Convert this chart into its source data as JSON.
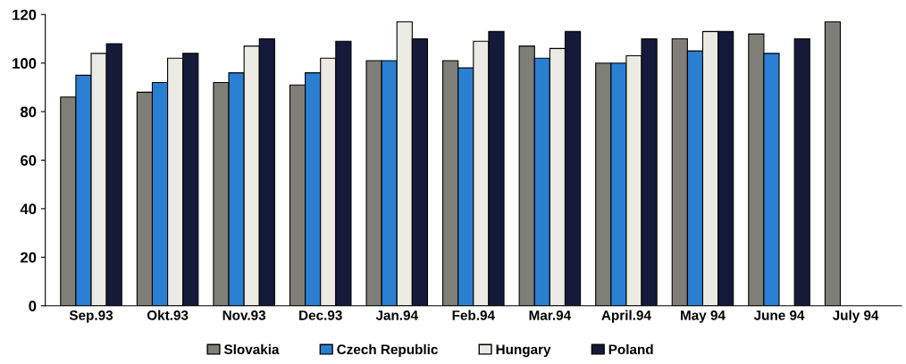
{
  "chart_data": {
    "type": "bar",
    "categories": [
      "Sep.93",
      "Okt.93",
      "Nov.93",
      "Dec.93",
      "Jan.94",
      "Feb.94",
      "Mar.94",
      "April.94",
      "May 94",
      "June 94",
      "July 94"
    ],
    "series": [
      {
        "name": "Slovakia",
        "color": "#7f7f77",
        "values": [
          86,
          88,
          92,
          91,
          101,
          101,
          107,
          100,
          110,
          112,
          117
        ]
      },
      {
        "name": "Czech Republic",
        "color": "#2a7fd2",
        "values": [
          95,
          92,
          96,
          96,
          101,
          98,
          102,
          100,
          105,
          104,
          null
        ]
      },
      {
        "name": "Hungary",
        "color": "#ebebe4",
        "values": [
          104,
          102,
          107,
          102,
          117,
          109,
          106,
          103,
          113,
          null,
          null
        ]
      },
      {
        "name": "Poland",
        "color": "#151a3a",
        "values": [
          108,
          104,
          110,
          109,
          110,
          113,
          113,
          110,
          113,
          110,
          null
        ]
      }
    ],
    "ylim": [
      0,
      120
    ],
    "yticks": [
      0,
      20,
      40,
      60,
      80,
      100,
      120
    ],
    "grid": false,
    "legend": "bottom"
  }
}
